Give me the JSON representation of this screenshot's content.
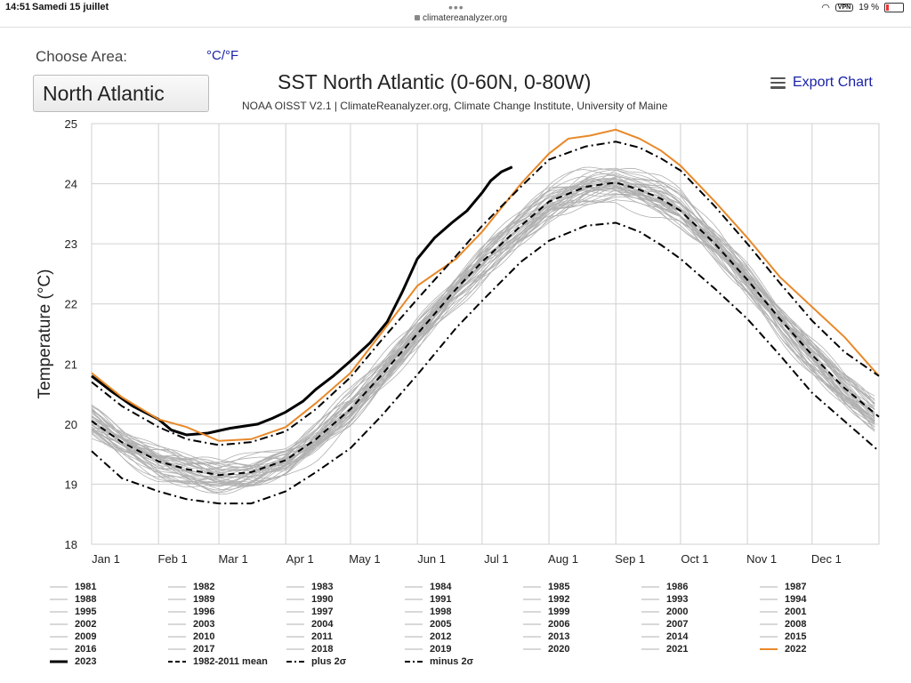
{
  "status_bar": {
    "time": "14:51",
    "date": "Samedi 15 juillet",
    "url": "climatereanalyzer.org",
    "battery": "19 %",
    "vpn_label": "VPN",
    "battery_level": 0.19,
    "wifi_icon": "wifi-icon"
  },
  "controls": {
    "choose_area_label": "Choose Area:",
    "unit_toggle": "°C/°F",
    "selected_area": "North Atlantic",
    "export_label": "Export Chart"
  },
  "chart_data": {
    "type": "line",
    "title": "SST North Atlantic (0-60N, 0-80W)",
    "subtitle": "NOAA OISST V2.1 | ClimateReanalyzer.org, Climate Change Institute, University of Maine",
    "ylabel": "Temperature (°C)",
    "xlabel": "",
    "ylim": [
      18,
      25
    ],
    "yticks": [
      "18",
      "19",
      "20",
      "21",
      "22",
      "23",
      "24",
      "25"
    ],
    "x_unit": "day of year",
    "xlim": [
      1,
      366
    ],
    "month_ticks": [
      {
        "label": "Jan 1",
        "day": 1
      },
      {
        "label": "Feb 1",
        "day": 32
      },
      {
        "label": "Mar 1",
        "day": 60
      },
      {
        "label": "Apr 1",
        "day": 91
      },
      {
        "label": "May 1",
        "day": 121
      },
      {
        "label": "Jun 1",
        "day": 152
      },
      {
        "label": "Jul 1",
        "day": 182
      },
      {
        "label": "Aug 1",
        "day": 213
      },
      {
        "label": "Sep 1",
        "day": 244
      },
      {
        "label": "Oct 1",
        "day": 274
      },
      {
        "label": "Nov 1",
        "day": 305
      },
      {
        "label": "Dec 1",
        "day": 335
      }
    ],
    "grid": true,
    "legend_position": "bottom",
    "colors": {
      "other_years": "#b0b0b0",
      "y2023": "#000000",
      "y2022": "#e8892a",
      "mean": "#000000"
    },
    "series": [
      {
        "name": "2023",
        "style": "bold-black",
        "x": [
          1,
          10,
          20,
          32,
          38,
          45,
          55,
          65,
          78,
          85,
          91,
          99,
          105,
          113,
          121,
          130,
          138,
          145,
          152,
          160,
          168,
          175,
          182,
          186,
          191,
          196
        ],
        "y": [
          20.8,
          20.55,
          20.3,
          20.08,
          19.9,
          19.82,
          19.85,
          19.93,
          20.0,
          20.1,
          20.2,
          20.38,
          20.58,
          20.8,
          21.05,
          21.35,
          21.7,
          22.2,
          22.75,
          23.1,
          23.35,
          23.55,
          23.85,
          24.05,
          24.2,
          24.28
        ]
      },
      {
        "name": "2022",
        "style": "orange",
        "x": [
          1,
          15,
          32,
          45,
          60,
          75,
          91,
          105,
          121,
          135,
          152,
          170,
          182,
          200,
          213,
          222,
          232,
          244,
          255,
          265,
          274,
          290,
          305,
          320,
          335,
          350,
          366
        ],
        "y": [
          20.85,
          20.45,
          20.08,
          19.95,
          19.72,
          19.75,
          19.95,
          20.35,
          20.85,
          21.5,
          22.3,
          22.75,
          23.2,
          24.0,
          24.5,
          24.75,
          24.8,
          24.9,
          24.75,
          24.55,
          24.3,
          23.7,
          23.1,
          22.45,
          21.95,
          21.45,
          20.8
        ]
      },
      {
        "name": "1982-2011 mean",
        "style": "dashed",
        "x": [
          1,
          15,
          32,
          45,
          60,
          75,
          91,
          105,
          121,
          135,
          152,
          170,
          182,
          200,
          213,
          230,
          244,
          255,
          265,
          274,
          290,
          305,
          320,
          335,
          350,
          366
        ],
        "y": [
          20.05,
          19.7,
          19.38,
          19.25,
          19.15,
          19.2,
          19.4,
          19.75,
          20.25,
          20.8,
          21.5,
          22.25,
          22.7,
          23.3,
          23.7,
          23.95,
          24.02,
          23.9,
          23.75,
          23.55,
          23.0,
          22.4,
          21.75,
          21.15,
          20.6,
          20.12
        ]
      },
      {
        "name": "plus 2σ",
        "style": "dashdot",
        "x": [
          1,
          15,
          32,
          45,
          60,
          75,
          91,
          105,
          121,
          135,
          152,
          170,
          182,
          200,
          213,
          230,
          244,
          255,
          265,
          274,
          290,
          305,
          320,
          335,
          350,
          366
        ],
        "y": [
          20.7,
          20.3,
          19.95,
          19.75,
          19.65,
          19.7,
          19.88,
          20.25,
          20.78,
          21.38,
          22.08,
          22.8,
          23.3,
          23.95,
          24.4,
          24.62,
          24.7,
          24.6,
          24.42,
          24.22,
          23.62,
          23.0,
          22.35,
          21.72,
          21.2,
          20.8
        ]
      },
      {
        "name": "minus 2σ",
        "style": "dashdot",
        "x": [
          1,
          15,
          32,
          45,
          60,
          75,
          91,
          105,
          121,
          135,
          152,
          170,
          182,
          200,
          213,
          230,
          244,
          255,
          265,
          274,
          290,
          305,
          320,
          335,
          350,
          366
        ],
        "y": [
          19.55,
          19.1,
          18.88,
          18.75,
          18.68,
          18.68,
          18.88,
          19.2,
          19.6,
          20.12,
          20.82,
          21.6,
          22.05,
          22.7,
          23.05,
          23.3,
          23.35,
          23.2,
          22.98,
          22.75,
          22.25,
          21.75,
          21.15,
          20.52,
          20.05,
          19.55
        ]
      }
    ],
    "other_years": [
      "1981",
      "1982",
      "1983",
      "1984",
      "1985",
      "1986",
      "1987",
      "1988",
      "1989",
      "1990",
      "1991",
      "1992",
      "1993",
      "1994",
      "1995",
      "1996",
      "1997",
      "1998",
      "1999",
      "2000",
      "2001",
      "2002",
      "2003",
      "2004",
      "2005",
      "2006",
      "2007",
      "2008",
      "2009",
      "2010",
      "2011",
      "2012",
      "2013",
      "2014",
      "2015",
      "2016",
      "2017",
      "2018",
      "2019",
      "2020",
      "2021"
    ]
  },
  "legend": {
    "items": [
      "1981",
      "1982",
      "1983",
      "1984",
      "1985",
      "1986",
      "1987",
      "1988",
      "1989",
      "1990",
      "1991",
      "1992",
      "1993",
      "1994",
      "1995",
      "1996",
      "1997",
      "1998",
      "1999",
      "2000",
      "2001",
      "2002",
      "2003",
      "2004",
      "2005",
      "2006",
      "2007",
      "2008",
      "2009",
      "2010",
      "2011",
      "2012",
      "2013",
      "2014",
      "2015",
      "2016",
      "2017",
      "2018",
      "2019",
      "2020",
      "2021",
      "2022",
      "2023",
      "1982-2011 mean",
      "plus 2σ",
      "minus 2σ"
    ]
  }
}
